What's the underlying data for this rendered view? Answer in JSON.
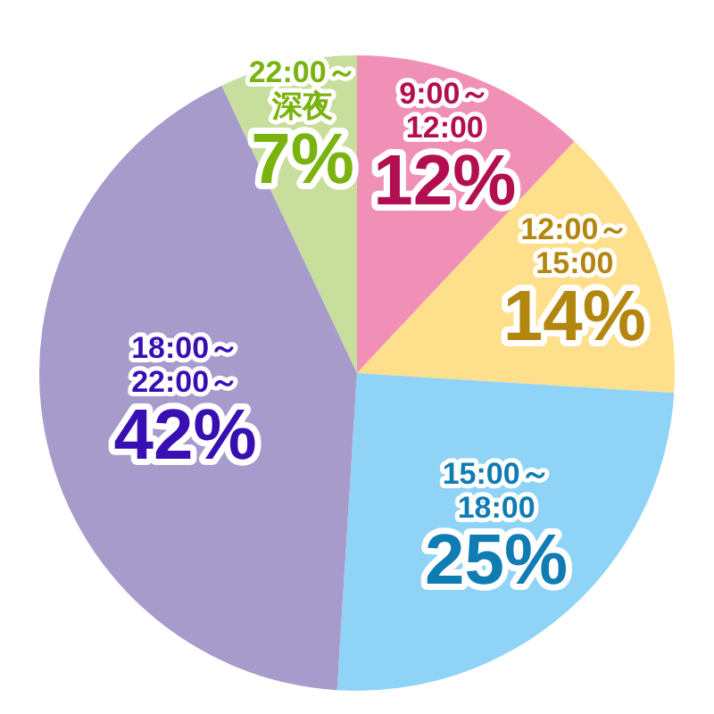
{
  "chart_data": {
    "type": "pie",
    "categories": [
      "9:00～12:00",
      "12:00～15:00",
      "15:00～18:00",
      "18:00～22:00～",
      "22:00～深夜"
    ],
    "values": [
      12,
      14,
      25,
      42,
      7
    ],
    "value_labels": [
      "12%",
      "14%",
      "25%",
      "42%",
      "7%"
    ],
    "colors": [
      "#f190b7",
      "#fedf8c",
      "#8fd4f6",
      "#a79bcc",
      "#c7de9c"
    ],
    "legend": false
  }
}
